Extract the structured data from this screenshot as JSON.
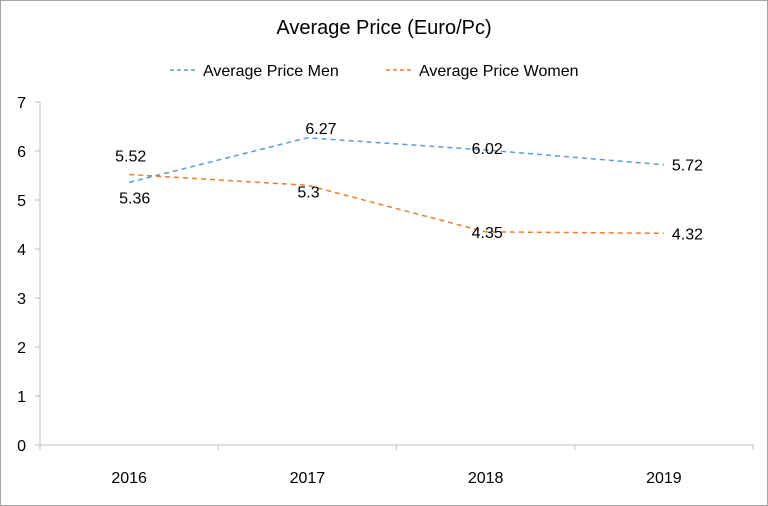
{
  "chart_data": {
    "type": "line",
    "title": "Average Price (Euro/Pc)",
    "categories": [
      "2016",
      "2017",
      "2018",
      "2019"
    ],
    "ylim": [
      0,
      7
    ],
    "yticks": [
      0,
      1,
      2,
      3,
      4,
      5,
      6,
      7
    ],
    "legend_position": "top",
    "grid": false,
    "series": [
      {
        "name": "Average Price Men",
        "values": [
          5.36,
          6.27,
          6.02,
          5.72
        ],
        "labels": [
          "5.36",
          "6.27",
          "6.02",
          "5.72"
        ],
        "color": "#5b9bd5",
        "line_style": "dashed"
      },
      {
        "name": "Average Price Women",
        "values": [
          5.52,
          5.3,
          4.35,
          4.32
        ],
        "labels": [
          "5.52",
          "5.3",
          "4.35",
          "4.32"
        ],
        "color": "#ed7d31",
        "line_style": "dashed"
      }
    ]
  }
}
